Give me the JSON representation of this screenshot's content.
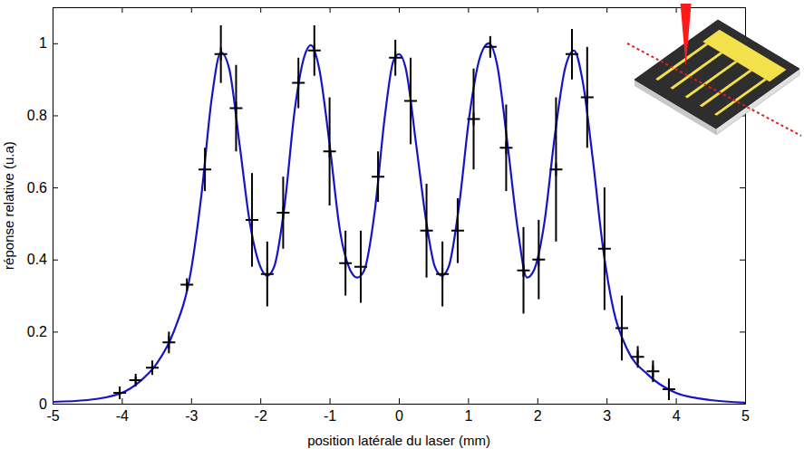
{
  "chart_data": {
    "type": "line",
    "xlabel": "position latérale du laser (mm)",
    "ylabel": "réponse relative (u.a)",
    "xlim": [
      -5,
      5
    ],
    "xticks": [
      -5,
      -4,
      -3,
      -2,
      -1,
      0,
      1,
      2,
      3,
      4,
      5
    ],
    "ylim": [
      0,
      1.1
    ],
    "yticks": [
      0,
      0.2,
      0.4,
      0.6,
      0.8,
      1
    ],
    "grid": false,
    "series": [
      {
        "type": "line",
        "color": "#1414c8",
        "line_style": "solid",
        "x": [
          -5,
          -4.5,
          -4,
          -3.75,
          -3.5,
          -3.25,
          -3,
          -2.85,
          -2.7,
          -2.57,
          -2.45,
          -2.3,
          -2.15,
          -2,
          -1.9,
          -1.8,
          -1.65,
          -1.5,
          -1.37,
          -1.27,
          -1.15,
          -1,
          -0.85,
          -0.7,
          -0.6,
          -0.5,
          -0.35,
          -0.2,
          -0.08,
          0,
          0.1,
          0.25,
          0.4,
          0.52,
          0.62,
          0.72,
          0.87,
          1.02,
          1.17,
          1.3,
          1.42,
          1.57,
          1.72,
          1.85,
          1.95,
          2.1,
          2.25,
          2.4,
          2.53,
          2.65,
          2.8,
          2.95,
          3.1,
          3.3,
          3.6,
          4,
          4.5,
          5
        ],
        "values": [
          0.005,
          0.01,
          0.03,
          0.06,
          0.11,
          0.2,
          0.37,
          0.58,
          0.85,
          0.975,
          0.93,
          0.72,
          0.5,
          0.38,
          0.355,
          0.38,
          0.55,
          0.82,
          0.96,
          0.995,
          0.93,
          0.72,
          0.48,
          0.37,
          0.35,
          0.37,
          0.53,
          0.8,
          0.95,
          0.97,
          0.93,
          0.72,
          0.5,
          0.38,
          0.355,
          0.38,
          0.55,
          0.8,
          0.96,
          1.0,
          0.94,
          0.72,
          0.48,
          0.35,
          0.37,
          0.5,
          0.74,
          0.93,
          0.98,
          0.9,
          0.68,
          0.43,
          0.26,
          0.15,
          0.08,
          0.03,
          0.01,
          0.003
        ]
      },
      {
        "type": "scatter",
        "color": "#000000",
        "marker": "+",
        "x": [
          -4.03,
          -3.8,
          -3.56,
          -3.32,
          -3.06,
          -2.8,
          -2.57,
          -2.35,
          -2.12,
          -1.9,
          -1.67,
          -1.45,
          -1.22,
          -1.0,
          -0.77,
          -0.55,
          -0.3,
          -0.05,
          0.17,
          0.4,
          0.63,
          0.85,
          1.08,
          1.32,
          1.55,
          1.8,
          2.02,
          2.27,
          2.5,
          2.72,
          2.97,
          3.22,
          3.45,
          3.67,
          3.9
        ],
        "values": [
          0.03,
          0.065,
          0.1,
          0.17,
          0.33,
          0.65,
          0.97,
          0.82,
          0.51,
          0.36,
          0.53,
          0.89,
          0.98,
          0.7,
          0.39,
          0.38,
          0.63,
          0.96,
          0.84,
          0.48,
          0.36,
          0.48,
          0.79,
          0.99,
          0.71,
          0.37,
          0.4,
          0.65,
          0.97,
          0.85,
          0.43,
          0.21,
          0.13,
          0.09,
          0.04
        ],
        "errors": [
          0.005,
          0.01,
          0.02,
          0.03,
          0.005,
          0.06,
          0.08,
          0.12,
          0.13,
          0.09,
          0.1,
          0.07,
          0.07,
          0.15,
          0.09,
          0.1,
          0.07,
          0.05,
          0.12,
          0.13,
          0.09,
          0.09,
          0.14,
          0.03,
          0.12,
          0.12,
          0.11,
          0.2,
          0.07,
          0.14,
          0.17,
          0.09,
          0.03,
          0.03,
          0.03
        ]
      }
    ]
  }
}
